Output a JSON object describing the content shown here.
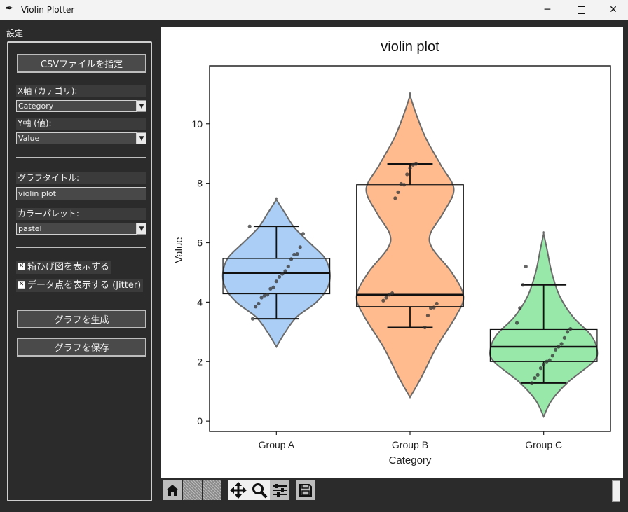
{
  "window": {
    "title": "Violin Plotter",
    "app_icon": "feather-icon"
  },
  "sidebar": {
    "heading": "設定",
    "csv_button": "CSVファイルを指定",
    "x_axis_label": "X軸 (カテゴリ):",
    "x_axis_value": "Category",
    "y_axis_label": "Y軸 (値):",
    "y_axis_value": "Value",
    "title_label": "グラフタイトル:",
    "title_value": "violin plot",
    "palette_label": "カラーパレット:",
    "palette_value": "pastel",
    "show_box_label": "箱ひげ図を表示する",
    "show_box_checked": true,
    "show_points_label": "データ点を表示する (Jitter)",
    "show_points_checked": true,
    "generate_button": "グラフを生成",
    "save_button": "グラフを保存"
  },
  "toolbar": {
    "icons": [
      "home-icon",
      "back-icon",
      "forward-icon",
      "pan-icon",
      "zoom-icon",
      "configure-subplots-icon",
      "save-figure-icon"
    ]
  },
  "chart_data": {
    "type": "violin",
    "title": "violin plot",
    "xlabel": "Category",
    "ylabel": "Value",
    "ylim": [
      -0.35,
      11.95
    ],
    "yticks": [
      0,
      2,
      4,
      6,
      8,
      10
    ],
    "categories": [
      "Group A",
      "Group B",
      "Group C"
    ],
    "colors": [
      "#a1c9f4",
      "#ffb482",
      "#8de5a1"
    ],
    "violins": [
      {
        "name": "Group A",
        "min_extent": 2.5,
        "max_extent": 7.45,
        "profile": [
          [
            2.5,
            0
          ],
          [
            3.0,
            0.17
          ],
          [
            3.5,
            0.38
          ],
          [
            4.0,
            0.75
          ],
          [
            4.5,
            0.96
          ],
          [
            5.0,
            1
          ],
          [
            5.5,
            0.9
          ],
          [
            6.0,
            0.62
          ],
          [
            6.5,
            0.34
          ],
          [
            7.0,
            0.16
          ],
          [
            7.45,
            0
          ]
        ],
        "box": {
          "q1": 4.28,
          "median": 4.98,
          "q3": 5.47,
          "whisker_low": 3.44,
          "whisker_high": 6.55
        },
        "points": [
          6.55,
          6.3,
          5.85,
          5.62,
          5.6,
          5.45,
          5.2,
          5.05,
          4.95,
          4.85,
          4.7,
          4.5,
          4.45,
          4.25,
          4.22,
          4.15,
          3.95,
          3.85,
          3.44
        ]
      },
      {
        "name": "Group B",
        "min_extent": 0.8,
        "max_extent": 10.95,
        "profile": [
          [
            0.8,
            0
          ],
          [
            1.5,
            0.22
          ],
          [
            2.5,
            0.5
          ],
          [
            3.5,
            0.85
          ],
          [
            4.2,
            1
          ],
          [
            5.0,
            0.78
          ],
          [
            5.8,
            0.42
          ],
          [
            6.3,
            0.38
          ],
          [
            7.0,
            0.62
          ],
          [
            7.8,
            0.82
          ],
          [
            8.6,
            0.58
          ],
          [
            9.5,
            0.3
          ],
          [
            10.3,
            0.12
          ],
          [
            10.95,
            0
          ]
        ],
        "box": {
          "q1": 3.85,
          "median": 4.25,
          "q3": 7.95,
          "whisker_low": 3.15,
          "whisker_high": 8.65
        },
        "points": [
          8.65,
          8.62,
          8.5,
          8.3,
          7.95,
          7.98,
          7.7,
          7.5,
          4.3,
          4.25,
          4.15,
          4.05,
          3.95,
          3.82,
          3.8,
          3.55,
          3.15
        ]
      },
      {
        "name": "Group C",
        "min_extent": 0.15,
        "max_extent": 6.3,
        "profile": [
          [
            0.15,
            0
          ],
          [
            0.7,
            0.15
          ],
          [
            1.3,
            0.45
          ],
          [
            2.0,
            0.93
          ],
          [
            2.4,
            1
          ],
          [
            2.9,
            0.88
          ],
          [
            3.5,
            0.55
          ],
          [
            4.2,
            0.3
          ],
          [
            5.0,
            0.15
          ],
          [
            5.8,
            0.06
          ],
          [
            6.3,
            0
          ]
        ],
        "box": {
          "q1": 2.0,
          "median": 2.5,
          "q3": 3.08,
          "whisker_low": 1.28,
          "whisker_high": 4.58
        },
        "points": [
          5.2,
          4.58,
          3.8,
          3.3,
          3.1,
          3.0,
          2.8,
          2.6,
          2.5,
          2.4,
          2.2,
          2.05,
          2.0,
          1.9,
          1.78,
          1.55,
          1.45,
          1.28
        ]
      }
    ]
  }
}
